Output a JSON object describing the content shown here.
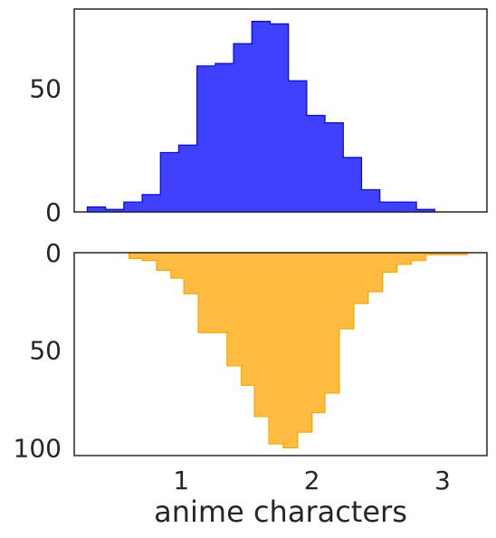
{
  "chart_data": [
    {
      "type": "bar",
      "panel": "top",
      "bin_edges": [
        0.28,
        0.42,
        0.56,
        0.7,
        0.84,
        0.98,
        1.12,
        1.26,
        1.4,
        1.54,
        1.68,
        1.82,
        1.96,
        2.1,
        2.24,
        2.38,
        2.52,
        2.66,
        2.8,
        2.94
      ],
      "values": [
        2,
        1,
        4,
        7,
        24,
        27,
        59,
        60,
        68,
        77,
        76,
        53,
        39,
        36,
        22,
        9,
        4,
        4,
        1
      ],
      "color": "#0000ff",
      "xlim": [
        0.18,
        3.34
      ],
      "ylim": [
        0,
        82
      ],
      "yticks": [
        "0",
        "50"
      ],
      "ytick_values": [
        0,
        50
      ]
    },
    {
      "type": "bar",
      "panel": "bottom",
      "orientation": "inverted",
      "bin_edges": [
        0.18,
        0.32,
        0.46,
        0.6,
        0.7,
        0.81,
        0.92,
        1.02,
        1.13,
        1.24,
        1.35,
        1.46,
        1.56,
        1.67,
        1.78,
        1.89,
        2.0,
        2.1,
        2.21,
        2.32,
        2.43,
        2.54,
        2.65,
        2.76,
        2.87,
        2.97,
        3.08,
        3.19
      ],
      "values": [
        0,
        0,
        0,
        0,
        0,
        0,
        0,
        0,
        0,
        0,
        0,
        0,
        0,
        0,
        0,
        0,
        0,
        0,
        0,
        0,
        0,
        0,
        0,
        0,
        0,
        0,
        0
      ],
      "values_nonzero": {
        "edges": [
          0.6,
          0.7,
          0.81,
          0.92,
          1.02,
          1.13,
          1.24,
          1.35,
          1.46,
          1.56,
          1.67,
          1.78,
          1.89,
          2.0,
          2.1,
          2.21,
          2.32,
          2.43,
          2.54,
          2.65,
          2.76,
          2.87,
          2.97,
          3.08,
          3.19
        ],
        "values": [
          3,
          4,
          9,
          13,
          21,
          41,
          41,
          58,
          68,
          84,
          98,
          100,
          92,
          82,
          72,
          39,
          26,
          20,
          10,
          6,
          4,
          1,
          1,
          1
        ]
      },
      "color": "#ffa500",
      "xlim": [
        0.18,
        3.34
      ],
      "ylim": [
        0,
        104
      ],
      "yticks": [
        "0",
        "50",
        "100"
      ],
      "ytick_values": [
        0,
        50,
        100
      ],
      "xticks": [
        "1",
        "2",
        "3"
      ],
      "xtick_values": [
        1,
        2,
        3
      ],
      "xlabel": "anime characters"
    }
  ]
}
